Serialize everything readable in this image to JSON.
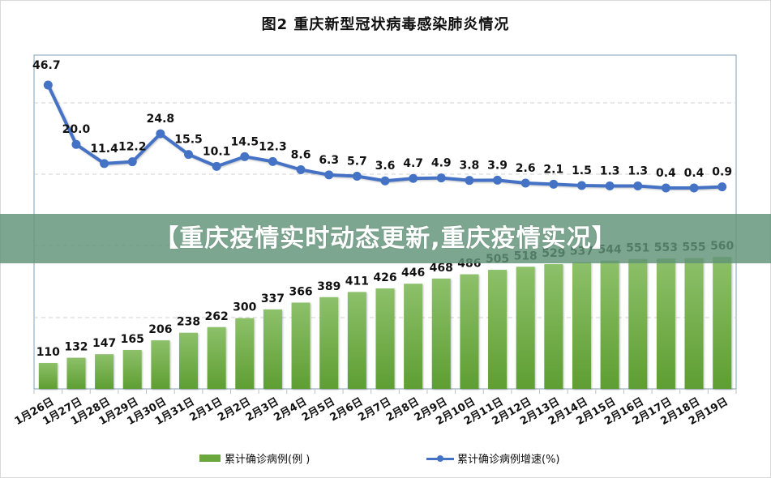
{
  "title": "图2    重庆新型冠状病毒感染肺炎情况",
  "overlay": {
    "text": "【重庆疫情实时动态更新,重庆疫情实况】",
    "color": "#60927880"
  },
  "legend": {
    "bar_label": "累计确诊病例(例 )",
    "line_label": "累计确诊病例增速(%)"
  },
  "colors": {
    "bar": "#6aa83e",
    "bar_top": "#8dc06a",
    "line": "#4472c4",
    "grid": "#d0d0d0",
    "axis": "#7f9fb8"
  },
  "chart_data": {
    "type": "bar+line",
    "title": "图2 重庆新型冠状病毒感染肺炎情况",
    "xlabel": "",
    "ylabel": "",
    "categories": [
      "1月26日",
      "1月27日",
      "1月28日",
      "1月29日",
      "1月30日",
      "1月31日",
      "2月1日",
      "2月2日",
      "2月3日",
      "2月4日",
      "2月5日",
      "2月6日",
      "2月7日",
      "2月8日",
      "2月9日",
      "2月10日",
      "2月11日",
      "2月12日",
      "2月13日",
      "2月14日",
      "2月15日",
      "2月16日",
      "2月17日",
      "2月18日",
      "2月19日"
    ],
    "series": [
      {
        "name": "累计确诊病例(例 )",
        "type": "bar",
        "values": [
          110,
          132,
          147,
          165,
          206,
          238,
          262,
          300,
          337,
          366,
          389,
          411,
          426,
          446,
          468,
          486,
          505,
          518,
          529,
          537,
          544,
          551,
          553,
          555,
          560
        ]
      },
      {
        "name": "累计确诊病例增速(%)",
        "type": "line",
        "values": [
          46.7,
          20.0,
          11.4,
          12.2,
          24.8,
          15.5,
          10.1,
          14.5,
          12.3,
          8.6,
          6.3,
          5.7,
          3.6,
          4.7,
          4.9,
          3.8,
          3.9,
          2.6,
          2.1,
          1.5,
          1.3,
          1.3,
          0.4,
          0.4,
          0.9
        ]
      }
    ],
    "grid": true,
    "legend_position": "bottom",
    "data_labels": true
  }
}
